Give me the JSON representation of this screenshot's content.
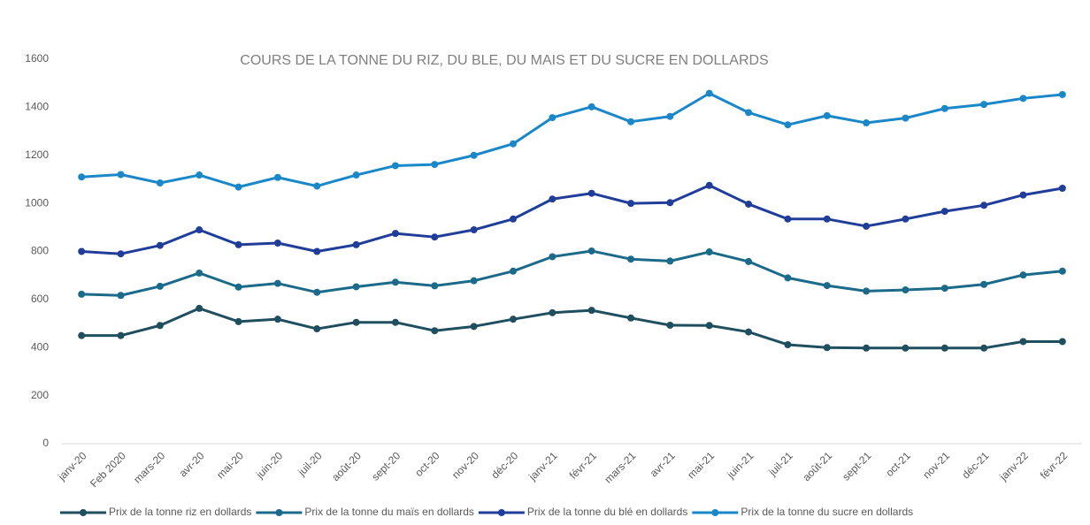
{
  "chart_data": {
    "type": "line",
    "title": "COURS DE LA TONNE DU RIZ, DU BLE, DU MAIS ET DU SUCRE EN DOLLARDS",
    "categories": [
      "janv-20",
      "Feb 2020",
      "mars-20",
      "avr-20",
      "mai-20",
      "juin-20",
      "juil-20",
      "août-20",
      "sept-20",
      "oct-20",
      "nov-20",
      "déc-20",
      "janv-21",
      "févr-21",
      "mars-21",
      "avr-21",
      "mai-21",
      "juin-21",
      "juil-21",
      "août-21",
      "sept-21",
      "oct-21",
      "nov-21",
      "déc-21",
      "janv-22",
      "févr-22"
    ],
    "series": [
      {
        "name": "Prix de la tonne riz en dollards",
        "color": "#1f4e5f",
        "values": [
          450,
          450,
          492,
          563,
          508,
          518,
          478,
          505,
          505,
          470,
          488,
          518,
          545,
          555,
          523,
          493,
          492,
          465,
          412,
          400,
          398,
          398,
          398,
          398,
          425,
          425
        ]
      },
      {
        "name": "Prix de la tonne du maïs en dollards",
        "color": "#1b6a8a",
        "values": [
          622,
          617,
          655,
          710,
          652,
          667,
          630,
          653,
          672,
          657,
          678,
          718,
          778,
          802,
          768,
          760,
          798,
          758,
          690,
          658,
          635,
          640,
          647,
          663,
          702,
          718
        ]
      },
      {
        "name": "Prix de la tonne du blé en dollards",
        "color": "#1f3d99",
        "values": [
          800,
          790,
          825,
          890,
          828,
          835,
          800,
          828,
          875,
          860,
          890,
          935,
          1018,
          1042,
          1000,
          1003,
          1075,
          997,
          935,
          935,
          905,
          935,
          967,
          992,
          1035,
          1063
        ]
      },
      {
        "name": "Prix de la tonne du sucre en dollards",
        "color": "#1a87c9",
        "values": [
          1110,
          1120,
          1085,
          1118,
          1068,
          1108,
          1072,
          1118,
          1157,
          1162,
          1200,
          1248,
          1357,
          1402,
          1340,
          1362,
          1458,
          1378,
          1327,
          1365,
          1335,
          1355,
          1395,
          1412,
          1437,
          1453
        ]
      }
    ],
    "ylim": [
      0,
      1600
    ],
    "yticks": [
      0,
      200,
      400,
      600,
      800,
      1000,
      1200,
      1400,
      1600
    ],
    "grid": false,
    "legend": "bottom"
  }
}
